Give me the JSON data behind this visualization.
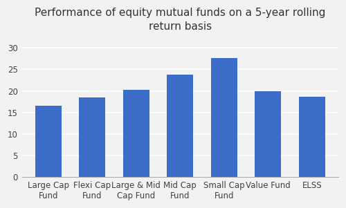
{
  "title": "Performance of equity mutual funds on a 5-year rolling\nreturn basis",
  "categories": [
    "Large Cap\nFund",
    "Flexi Cap\nFund",
    "Large & Mid\nCap Fund",
    "Mid Cap\nFund",
    "Small Cap\nFund",
    "Value Fund",
    "ELSS"
  ],
  "values": [
    16.5,
    18.5,
    20.2,
    23.8,
    27.7,
    20.0,
    18.6
  ],
  "bar_color": "#3B6CC7",
  "ylim": [
    0,
    32
  ],
  "yticks": [
    0,
    5,
    10,
    15,
    20,
    25,
    30
  ],
  "background_color": "#f2f2f2",
  "plot_bg_color": "#f2f2f2",
  "grid_color": "#ffffff",
  "title_fontsize": 11,
  "tick_fontsize": 8.5
}
